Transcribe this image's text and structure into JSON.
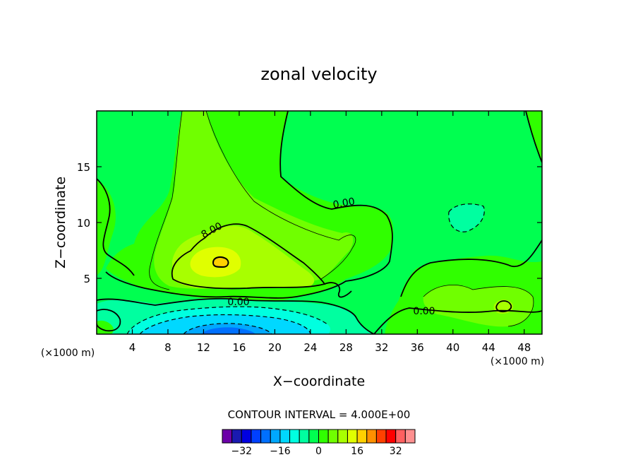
{
  "chart_data": {
    "type": "heatmap",
    "title": "zonal velocity",
    "xlabel": "X−coordinate",
    "ylabel": "Z−coordinate",
    "x_unit_label": "(×1000 m)",
    "y_unit_label": "(×1000 m)",
    "xlim": [
      0,
      50
    ],
    "ylim": [
      0,
      20
    ],
    "x_ticks": [
      4,
      8,
      12,
      16,
      20,
      24,
      28,
      32,
      36,
      40,
      44,
      48
    ],
    "y_ticks": [
      5,
      10,
      15
    ],
    "contour_interval_label": "CONTOUR INTERVAL = 4.000E+00",
    "contour_labels": [
      {
        "text": "0.00",
        "x": 27.5,
        "y": 11.5
      },
      {
        "text": "8.00",
        "x": 13.0,
        "y": 9.0
      },
      {
        "text": "0.00",
        "x": 16.0,
        "y": 2.8
      },
      {
        "text": "0.00",
        "x": 37.0,
        "y": 2.0
      }
    ],
    "colorbar": {
      "tick_labels": [
        "−32",
        "−16",
        "0",
        "16",
        "32"
      ],
      "tick_values": [
        -32,
        -16,
        0,
        16,
        32
      ],
      "levels": [
        -36,
        -32,
        -28,
        -24,
        -20,
        -16,
        -12,
        -8,
        -4,
        0,
        4,
        8,
        12,
        16,
        20,
        24,
        28,
        32,
        36
      ],
      "colors": [
        "#6b00a8",
        "#1a1ab0",
        "#0000e0",
        "#0040ff",
        "#0070ff",
        "#00a8ff",
        "#00d8ff",
        "#00ffe0",
        "#00ffa0",
        "#00ff50",
        "#30ff00",
        "#70ff00",
        "#a8ff00",
        "#e0ff00",
        "#ffd000",
        "#ff9000",
        "#ff4000",
        "#ff0000",
        "#ff6060",
        "#ff9090"
      ]
    }
  }
}
